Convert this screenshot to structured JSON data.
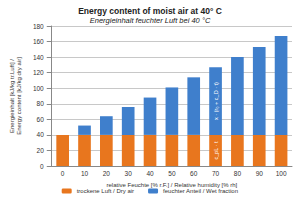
{
  "chart_data": {
    "type": "bar",
    "title": "Energy content of moist air at 40° C",
    "subtitle": "Energieinhalt feuchter Luft bei 40 °C",
    "x_label": "relative Feuchte [% r.F.] / Relative humidity [% rh]",
    "y_label": "Energieinhalt [kJ/kg tr.Luft] / Energy content [kJ/kg dry air]",
    "categories": [
      "0",
      "10",
      "20",
      "30",
      "40",
      "50",
      "60",
      "70",
      "80",
      "90",
      "100"
    ],
    "series": [
      {
        "name": "trockene Luft / Dry air",
        "color": "#e8761e",
        "values": [
          40,
          40,
          40,
          40,
          40,
          40,
          40,
          40,
          40,
          40,
          40
        ]
      },
      {
        "name": "feuchter Anteil / Wet fraction",
        "color": "#3f7fcc",
        "values": [
          0,
          12,
          24,
          36,
          48,
          61,
          74,
          87,
          100,
          113,
          127
        ]
      }
    ],
    "stacked": true,
    "ylim": [
      0,
      180
    ],
    "yticks": [
      0,
      20,
      40,
      60,
      80,
      100,
      120,
      140,
      160,
      180
    ],
    "grid": true,
    "legend": "bottom",
    "annotations": [
      {
        "text": "x · (r₀ + c_D · t)",
        "category": "70",
        "series": "feuchter Anteil / Wet fraction"
      },
      {
        "text": "c_pL · t",
        "category": "70",
        "series": "trockene Luft / Dry air"
      }
    ]
  }
}
